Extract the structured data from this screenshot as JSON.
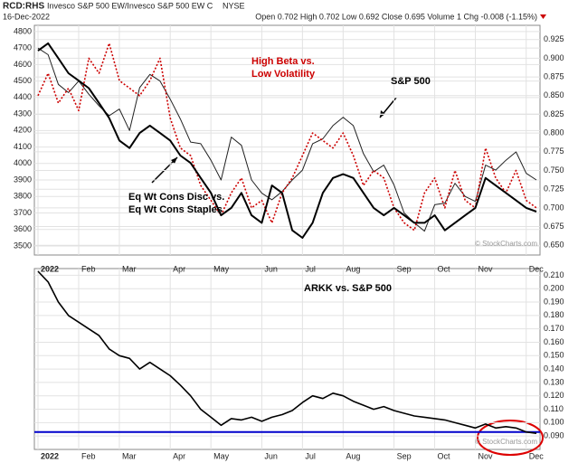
{
  "header": {
    "symbol": "RCD:RHS",
    "name": "Invesco S&P 500 EW/Invesco S&P 500 EW C",
    "exchange": "NYSE",
    "date": "16-Dec-2022",
    "quote": "Open 0.702 High 0.702 Low 0.692 Close 0.695 Volume 1 Chg -0.008 (-1.15%)"
  },
  "watermark": "© StockCharts.com",
  "chart_data": [
    {
      "type": "line",
      "categories": [
        "2022",
        null,
        null,
        null,
        "Feb",
        null,
        null,
        null,
        "Mar",
        null,
        null,
        null,
        null,
        "Apr",
        null,
        null,
        null,
        "May",
        null,
        null,
        null,
        null,
        "Jun",
        null,
        null,
        null,
        "Jul",
        null,
        null,
        null,
        "Aug",
        null,
        null,
        null,
        null,
        "Sep",
        null,
        null,
        null,
        "Oct",
        null,
        null,
        null,
        "Nov",
        null,
        null,
        null,
        null,
        "Dec",
        null
      ],
      "series": [
        {
          "color": "#222222",
          "width": 1,
          "style": "solid",
          "values": [
            4700,
            4660,
            4480,
            4430,
            4500,
            4420,
            4350,
            4290,
            4330,
            4200,
            4460,
            4540,
            4500,
            4390,
            4270,
            4130,
            4120,
            4020,
            3900,
            4160,
            4110,
            3900,
            3820,
            3780,
            3830,
            3900,
            3960,
            4120,
            4150,
            4230,
            4280,
            4230,
            4060,
            3950,
            3990,
            3870,
            3700,
            3640,
            3590,
            3750,
            3760,
            3880,
            3800,
            3770,
            3990,
            3960,
            4020,
            4070,
            3940,
            3900
          ]
        },
        {
          "axis": "y2",
          "color": "#cc0000",
          "width": 1.6,
          "style": "dotted",
          "values": [
            0.85,
            0.88,
            0.84,
            0.86,
            0.83,
            0.9,
            0.88,
            0.92,
            0.87,
            0.86,
            0.85,
            0.87,
            0.9,
            0.82,
            0.78,
            0.77,
            0.73,
            0.71,
            0.69,
            0.72,
            0.74,
            0.7,
            0.71,
            0.68,
            0.72,
            0.74,
            0.77,
            0.8,
            0.79,
            0.78,
            0.8,
            0.77,
            0.73,
            0.75,
            0.74,
            0.7,
            0.68,
            0.67,
            0.72,
            0.74,
            0.7,
            0.75,
            0.71,
            0.7,
            0.78,
            0.74,
            0.72,
            0.75,
            0.71,
            0.7
          ]
        },
        {
          "axis": "y2",
          "color": "#000000",
          "width": 2,
          "style": "solid",
          "values": [
            0.91,
            0.92,
            0.9,
            0.88,
            0.87,
            0.86,
            0.84,
            0.82,
            0.79,
            0.78,
            0.8,
            0.81,
            0.8,
            0.79,
            0.77,
            0.76,
            0.74,
            0.72,
            0.69,
            0.7,
            0.72,
            0.69,
            0.68,
            0.73,
            0.72,
            0.67,
            0.66,
            0.68,
            0.72,
            0.74,
            0.745,
            0.74,
            0.72,
            0.7,
            0.69,
            0.7,
            0.69,
            0.68,
            0.68,
            0.69,
            0.67,
            0.68,
            0.69,
            0.7,
            0.74,
            0.73,
            0.72,
            0.71,
            0.7,
            0.695
          ]
        }
      ],
      "ylim": [
        3445,
        4838
      ],
      "yticks": [
        3500,
        3600,
        3700,
        3800,
        3900,
        4000,
        4100,
        4200,
        4300,
        4400,
        4500,
        4600,
        4700,
        4800
      ],
      "y2lim": [
        0.637,
        0.944
      ],
      "y2ticks": [
        {
          "value": 0.65,
          "label": "0.650"
        },
        {
          "value": 0.675,
          "label": "0.675"
        },
        {
          "value": 0.7,
          "label": "0.700"
        },
        {
          "value": 0.725,
          "label": "0.725"
        },
        {
          "value": 0.75,
          "label": "0.750"
        },
        {
          "value": 0.775,
          "label": "0.775"
        },
        {
          "value": 0.8,
          "label": "0.800"
        },
        {
          "value": 0.825,
          "label": "0.825"
        },
        {
          "value": 0.85,
          "label": "0.850"
        },
        {
          "value": 0.875,
          "label": "0.875"
        },
        {
          "value": 0.9,
          "label": "0.900"
        },
        {
          "value": 0.925,
          "label": "0.925"
        }
      ],
      "grid": true,
      "annotations": [
        {
          "lines": [
            "High Beta vs.",
            "Low Volatility"
          ],
          "color": "#cc0000"
        },
        {
          "lines": [
            "S&P 500"
          ],
          "color": "#000000"
        },
        {
          "lines": [
            "Eq Wt Cons Disc vs.",
            "Eq Wt Cons Staples"
          ],
          "color": "#000000"
        }
      ]
    },
    {
      "type": "line",
      "categories": [
        "2022",
        null,
        null,
        null,
        "Feb",
        null,
        null,
        null,
        "Mar",
        null,
        null,
        null,
        null,
        "Apr",
        null,
        null,
        null,
        "May",
        null,
        null,
        null,
        null,
        "Jun",
        null,
        null,
        null,
        "Jul",
        null,
        null,
        null,
        "Aug",
        null,
        null,
        null,
        null,
        "Sep",
        null,
        null,
        null,
        "Oct",
        null,
        null,
        null,
        "Nov",
        null,
        null,
        null,
        null,
        "Dec",
        null
      ],
      "series": [
        {
          "axis": "y2",
          "color": "#000000",
          "width": 1.6,
          "style": "solid",
          "values": [
            0.213,
            0.205,
            0.19,
            0.18,
            0.175,
            0.17,
            0.165,
            0.155,
            0.15,
            0.148,
            0.14,
            0.145,
            0.14,
            0.135,
            0.128,
            0.12,
            0.11,
            0.104,
            0.098,
            0.103,
            0.102,
            0.104,
            0.101,
            0.104,
            0.106,
            0.109,
            0.115,
            0.12,
            0.118,
            0.122,
            0.12,
            0.116,
            0.113,
            0.11,
            0.112,
            0.109,
            0.107,
            0.105,
            0.104,
            0.103,
            0.102,
            0.1,
            0.098,
            0.096,
            0.099,
            0.096,
            0.097,
            0.096,
            0.093,
            0.092
          ]
        }
      ],
      "y2lim": [
        0.08,
        0.215
      ],
      "y2ticks": [
        {
          "value": 0.09,
          "label": "0.090"
        },
        {
          "value": 0.1,
          "label": "0.100"
        },
        {
          "value": 0.11,
          "label": "0.110"
        },
        {
          "value": 0.12,
          "label": "0.120"
        },
        {
          "value": 0.13,
          "label": "0.130"
        },
        {
          "value": 0.14,
          "label": "0.140"
        },
        {
          "value": 0.15,
          "label": "0.150"
        },
        {
          "value": 0.16,
          "label": "0.160"
        },
        {
          "value": 0.17,
          "label": "0.170"
        },
        {
          "value": 0.18,
          "label": "0.180"
        },
        {
          "value": 0.19,
          "label": "0.190"
        },
        {
          "value": 0.2,
          "label": "0.200"
        },
        {
          "value": 0.21,
          "label": "0.210"
        }
      ],
      "reference_line": {
        "value": 0.093,
        "color": "#0000cc"
      },
      "grid": true,
      "annotations": [
        {
          "lines": [
            "ARKK vs. S&P 500"
          ],
          "color": "#000000"
        }
      ]
    }
  ]
}
